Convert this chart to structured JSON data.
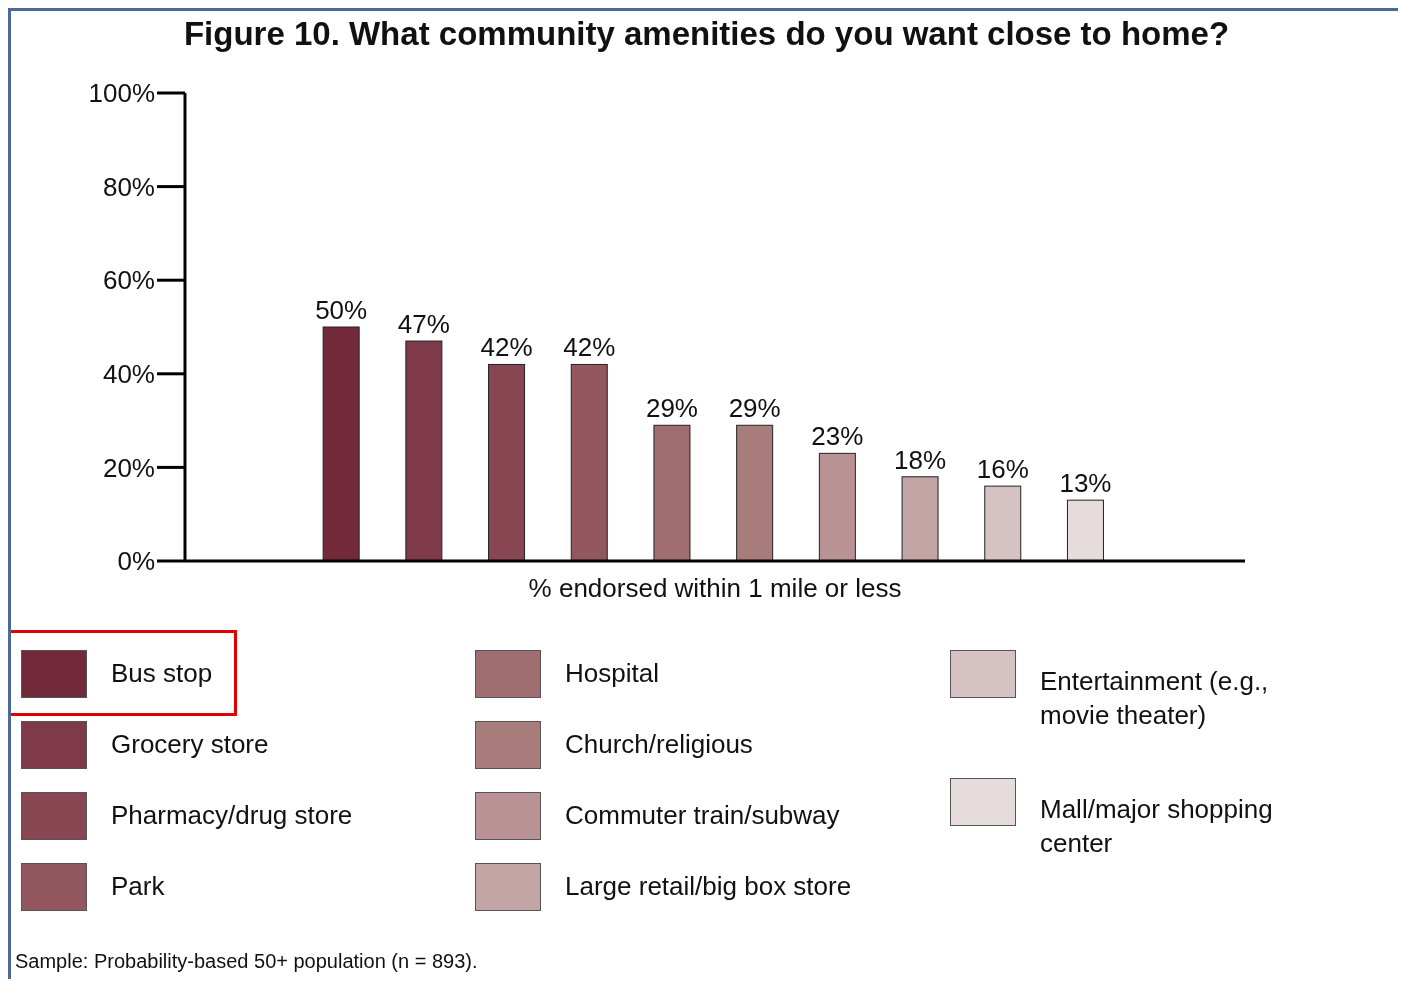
{
  "chart_data": {
    "type": "bar",
    "title": "Figure 10. What community amenities do you want close to home?",
    "xlabel": "% endorsed within 1 mile or less",
    "categories": [
      null,
      null,
      null,
      null,
      null,
      null,
      null,
      null,
      null,
      null
    ],
    "stacked": true,
    "series": [
      {
        "name": "Bus stop",
        "color": "#722a3b",
        "values": [
          50,
          null,
          null,
          null,
          null,
          null,
          null,
          null,
          null,
          null
        ],
        "value_labels": [
          "50%",
          null,
          null,
          null,
          null,
          null,
          null,
          null,
          null,
          null
        ]
      },
      {
        "name": "Grocery store",
        "color": "#7e3a48",
        "values": [
          null,
          47,
          null,
          null,
          null,
          null,
          null,
          null,
          null,
          null
        ],
        "value_labels": [
          null,
          "47%",
          null,
          null,
          null,
          null,
          null,
          null,
          null,
          null
        ]
      },
      {
        "name": "Pharmacy/drug store",
        "color": "#874652",
        "values": [
          null,
          null,
          42,
          null,
          null,
          null,
          null,
          null,
          null,
          null
        ],
        "value_labels": [
          null,
          null,
          "42%",
          null,
          null,
          null,
          null,
          null,
          null,
          null
        ]
      },
      {
        "name": "Park",
        "color": "#93575f",
        "values": [
          null,
          null,
          null,
          42,
          null,
          null,
          null,
          null,
          null,
          null
        ],
        "value_labels": [
          null,
          null,
          null,
          "42%",
          null,
          null,
          null,
          null,
          null,
          null
        ]
      },
      {
        "name": "Hospital",
        "color": "#a06e70",
        "values": [
          null,
          null,
          null,
          null,
          29,
          null,
          null,
          null,
          null,
          null
        ],
        "value_labels": [
          null,
          null,
          null,
          null,
          "29%",
          null,
          null,
          null,
          null,
          null
        ]
      },
      {
        "name": "Church/religious",
        "color": "#a97c7c",
        "values": [
          null,
          null,
          null,
          null,
          null,
          29,
          null,
          null,
          null,
          null
        ],
        "value_labels": [
          null,
          null,
          null,
          null,
          null,
          "29%",
          null,
          null,
          null,
          null
        ]
      },
      {
        "name": "Commuter train/subway",
        "color": "#b99393",
        "values": [
          null,
          null,
          null,
          null,
          null,
          null,
          23,
          null,
          null,
          null
        ],
        "value_labels": [
          null,
          null,
          null,
          null,
          null,
          null,
          "23%",
          null,
          null,
          null
        ]
      },
      {
        "name": "Large retail/big box store",
        "color": "#c4a5a5",
        "values": [
          null,
          null,
          null,
          null,
          null,
          null,
          null,
          18,
          null,
          null
        ],
        "value_labels": [
          null,
          null,
          null,
          null,
          null,
          null,
          null,
          "18%",
          null,
          null
        ]
      },
      {
        "name": "Entertainment (e.g., movie theater)",
        "color": "#d6c2c2",
        "values": [
          null,
          null,
          null,
          null,
          null,
          null,
          null,
          null,
          16,
          null
        ],
        "value_labels": [
          null,
          null,
          null,
          null,
          null,
          null,
          null,
          null,
          "16%",
          null
        ]
      },
      {
        "name": "Mall/major shopping center",
        "color": "#e6dcdc",
        "values": [
          null,
          null,
          null,
          null,
          null,
          null,
          null,
          null,
          null,
          13
        ],
        "value_labels": [
          null,
          null,
          null,
          null,
          null,
          null,
          null,
          null,
          null,
          "13%"
        ]
      }
    ],
    "ylim": [
      0,
      100
    ],
    "yticks": [
      {
        "value": 0,
        "label": "0%"
      },
      {
        "value": 20,
        "label": "20%"
      },
      {
        "value": 40,
        "label": "40%"
      },
      {
        "value": 60,
        "label": "60%"
      },
      {
        "value": 80,
        "label": "80%"
      },
      {
        "value": 100,
        "label": "100%"
      }
    ],
    "tick_labels": "y",
    "legend": "bottom",
    "annotations": [
      "Sample: Probability-based 50+ population (n = 893)."
    ]
  }
}
